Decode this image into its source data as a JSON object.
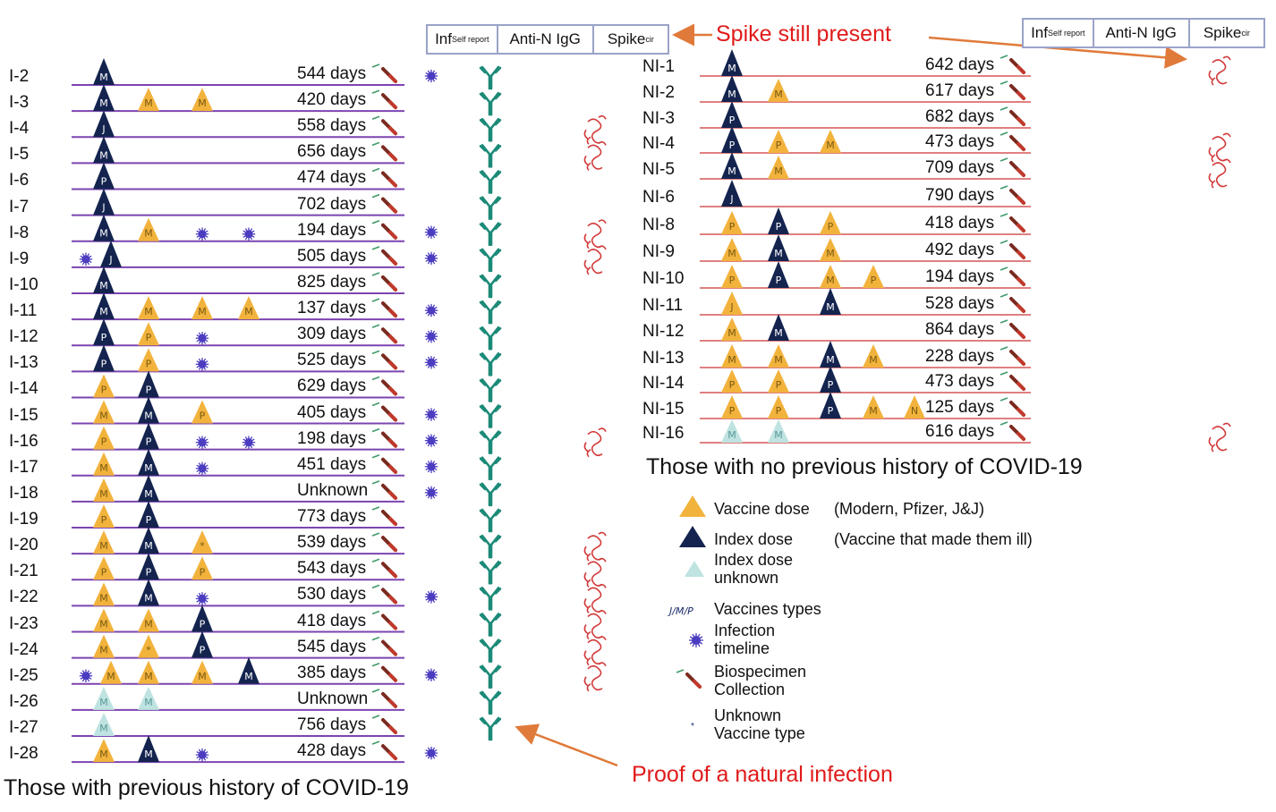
{
  "left": {
    "header": {
      "inf": "Inf",
      "inf_sub": "Self report",
      "antin": "Anti-N IgG",
      "spike": "Spike",
      "spike_sub": "cir"
    },
    "caption": "Those with previous history of COVID-19",
    "rows": [
      {
        "id": "I-2",
        "days": "544 days",
        "doses": [
          {
            "t": "I",
            "l": "M"
          }
        ],
        "inf": true,
        "igg": true,
        "spike": false
      },
      {
        "id": "I-3",
        "days": "420 days",
        "doses": [
          {
            "t": "I",
            "l": "M"
          },
          {
            "t": "V",
            "l": "M"
          },
          {
            "t": "V",
            "l": "M"
          }
        ],
        "inf": false,
        "igg": true,
        "spike": false
      },
      {
        "id": "I-4",
        "days": "558 days",
        "doses": [
          {
            "t": "I",
            "l": "J"
          }
        ],
        "inf": false,
        "igg": true,
        "spike": true
      },
      {
        "id": "I-5",
        "days": "656 days",
        "doses": [
          {
            "t": "I",
            "l": "M"
          }
        ],
        "inf": false,
        "igg": true,
        "spike": true
      },
      {
        "id": "I-6",
        "days": "474 days",
        "doses": [
          {
            "t": "I",
            "l": "P"
          }
        ],
        "inf": false,
        "igg": true,
        "spike": false
      },
      {
        "id": "I-7",
        "days": "702 days",
        "doses": [
          {
            "t": "I",
            "l": "J"
          }
        ],
        "inf": false,
        "igg": true,
        "spike": false
      },
      {
        "id": "I-8",
        "days": "194 days",
        "doses": [
          {
            "t": "I",
            "l": "M"
          },
          {
            "t": "V",
            "l": "M"
          },
          {
            "t": "X"
          },
          {
            "t": "X"
          }
        ],
        "inf": true,
        "igg": true,
        "spike": true
      },
      {
        "id": "I-9",
        "days": "505 days",
        "pre": true,
        "doses": [
          {
            "t": "I",
            "l": "J"
          }
        ],
        "inf": true,
        "igg": true,
        "spike": true
      },
      {
        "id": "I-10",
        "days": "825 days",
        "doses": [
          {
            "t": "I",
            "l": "M"
          }
        ],
        "inf": false,
        "igg": true,
        "spike": false
      },
      {
        "id": "I-11",
        "days": "137 days",
        "doses": [
          {
            "t": "I",
            "l": "M"
          },
          {
            "t": "V",
            "l": "M"
          },
          {
            "t": "V",
            "l": "M"
          },
          {
            "t": "V",
            "l": "M"
          }
        ],
        "inf": true,
        "igg": true,
        "spike": false
      },
      {
        "id": "I-12",
        "days": "309 days",
        "doses": [
          {
            "t": "I",
            "l": "P"
          },
          {
            "t": "V",
            "l": "P"
          },
          {
            "t": "X"
          }
        ],
        "inf": true,
        "igg": true,
        "spike": false
      },
      {
        "id": "I-13",
        "days": "525 days",
        "doses": [
          {
            "t": "I",
            "l": "P"
          },
          {
            "t": "V",
            "l": "P"
          },
          {
            "t": "X"
          }
        ],
        "inf": true,
        "igg": true,
        "spike": false
      },
      {
        "id": "I-14",
        "days": "629 days",
        "doses": [
          {
            "t": "V",
            "l": "P"
          },
          {
            "t": "I",
            "l": "P"
          }
        ],
        "inf": false,
        "igg": true,
        "spike": false
      },
      {
        "id": "I-15",
        "days": "405 days",
        "doses": [
          {
            "t": "V",
            "l": "M"
          },
          {
            "t": "I",
            "l": "M"
          },
          {
            "t": "V",
            "l": "P"
          }
        ],
        "inf": true,
        "igg": true,
        "spike": false
      },
      {
        "id": "I-16",
        "days": "198 days",
        "doses": [
          {
            "t": "V",
            "l": "P"
          },
          {
            "t": "I",
            "l": "P"
          },
          {
            "t": "X"
          },
          {
            "t": "X"
          }
        ],
        "inf": true,
        "igg": true,
        "spike": true
      },
      {
        "id": "I-17",
        "days": "451 days",
        "doses": [
          {
            "t": "V",
            "l": "M"
          },
          {
            "t": "I",
            "l": "M"
          },
          {
            "t": "X"
          }
        ],
        "inf": true,
        "igg": true,
        "spike": false
      },
      {
        "id": "I-18",
        "days": "Unknown",
        "doses": [
          {
            "t": "V",
            "l": "M"
          },
          {
            "t": "I",
            "l": "M"
          }
        ],
        "inf": true,
        "igg": true,
        "spike": false
      },
      {
        "id": "I-19",
        "days": "773 days",
        "doses": [
          {
            "t": "V",
            "l": "P"
          },
          {
            "t": "I",
            "l": "P"
          }
        ],
        "inf": false,
        "igg": true,
        "spike": false
      },
      {
        "id": "I-20",
        "days": "539 days",
        "doses": [
          {
            "t": "V",
            "l": "M"
          },
          {
            "t": "I",
            "l": "M"
          },
          {
            "t": "V",
            "l": "*"
          }
        ],
        "inf": false,
        "igg": true,
        "spike": true
      },
      {
        "id": "I-21",
        "days": "543 days",
        "doses": [
          {
            "t": "V",
            "l": "P"
          },
          {
            "t": "I",
            "l": "P"
          },
          {
            "t": "V",
            "l": "P"
          }
        ],
        "inf": false,
        "igg": true,
        "spike": true
      },
      {
        "id": "I-22",
        "days": "530 days",
        "doses": [
          {
            "t": "V",
            "l": "M"
          },
          {
            "t": "I",
            "l": "M"
          },
          {
            "t": "X"
          }
        ],
        "inf": true,
        "igg": true,
        "spike": true
      },
      {
        "id": "I-23",
        "days": "418 days",
        "doses": [
          {
            "t": "V",
            "l": "M"
          },
          {
            "t": "V",
            "l": "M"
          },
          {
            "t": "I",
            "l": "P"
          }
        ],
        "inf": false,
        "igg": true,
        "spike": true
      },
      {
        "id": "I-24",
        "days": "545 days",
        "doses": [
          {
            "t": "V",
            "l": "M"
          },
          {
            "t": "V",
            "l": "*"
          },
          {
            "t": "I",
            "l": "P"
          }
        ],
        "inf": false,
        "igg": true,
        "spike": true
      },
      {
        "id": "I-25",
        "days": "385 days",
        "pre": true,
        "doses": [
          {
            "t": "V",
            "l": "M"
          },
          {
            "t": "V",
            "l": "M"
          },
          {
            "t": "V",
            "l": "M"
          },
          {
            "t": "I",
            "l": "M"
          }
        ],
        "inf": true,
        "igg": true,
        "spike": true
      },
      {
        "id": "I-26",
        "days": "Unknown",
        "doses": [
          {
            "t": "U",
            "l": "M"
          },
          {
            "t": "U",
            "l": "M"
          }
        ],
        "inf": false,
        "igg": true,
        "spike": false
      },
      {
        "id": "I-27",
        "days": "756 days",
        "doses": [
          {
            "t": "U",
            "l": "M"
          }
        ],
        "inf": false,
        "igg": true,
        "spike": false
      },
      {
        "id": "I-28",
        "days": "428 days",
        "doses": [
          {
            "t": "V",
            "l": "M"
          },
          {
            "t": "I",
            "l": "M"
          },
          {
            "t": "X"
          }
        ],
        "inf": true,
        "igg": false,
        "spike": false
      }
    ]
  },
  "right": {
    "header": {
      "inf": "Inf",
      "inf_sub": "Self report",
      "antin": "Anti-N IgG",
      "spike": "Spike",
      "spike_sub": "cir"
    },
    "caption": "Those with  no previous history of COVID-19",
    "rows": [
      {
        "id": "NI-1",
        "days": "642 days",
        "doses": [
          {
            "t": "I",
            "l": "M"
          }
        ],
        "spike": true
      },
      {
        "id": "NI-2",
        "days": "617 days",
        "doses": [
          {
            "t": "I",
            "l": "M"
          },
          {
            "t": "V",
            "l": "M"
          }
        ],
        "spike": false
      },
      {
        "id": "NI-3",
        "days": "682 days",
        "doses": [
          {
            "t": "I",
            "l": "P"
          }
        ],
        "spike": false
      },
      {
        "id": "NI-4",
        "days": "473 days",
        "doses": [
          {
            "t": "I",
            "l": "P"
          },
          {
            "t": "V",
            "l": "P"
          },
          {
            "t": "V",
            "l": "M"
          }
        ],
        "spike": true
      },
      {
        "id": "NI-5",
        "days": "709 days",
        "doses": [
          {
            "t": "I",
            "l": "M"
          },
          {
            "t": "V",
            "l": "M"
          }
        ],
        "spike": true
      },
      {
        "id": "NI-6",
        "days": "790 days",
        "doses": [
          {
            "t": "I",
            "l": "J"
          }
        ],
        "spike": false
      },
      {
        "id": "NI-8",
        "days": "418 days",
        "doses": [
          {
            "t": "V",
            "l": "P"
          },
          {
            "t": "I",
            "l": "P"
          },
          {
            "t": "V",
            "l": "P"
          }
        ],
        "spike": false
      },
      {
        "id": "NI-9",
        "days": "492 days",
        "doses": [
          {
            "t": "V",
            "l": "M"
          },
          {
            "t": "I",
            "l": "M"
          },
          {
            "t": "V",
            "l": "M"
          }
        ],
        "spike": false
      },
      {
        "id": "NI-10",
        "days": "194 days",
        "doses": [
          {
            "t": "V",
            "l": "P"
          },
          {
            "t": "I",
            "l": "P"
          },
          {
            "t": "V",
            "l": "M"
          },
          {
            "t": "V",
            "l": "P"
          }
        ],
        "spike": false
      },
      {
        "id": "NI-11",
        "days": "528 days",
        "doses": [
          {
            "t": "V",
            "l": "J"
          },
          {
            "t": "G"
          },
          {
            "t": "I",
            "l": "M"
          }
        ],
        "spike": false
      },
      {
        "id": "NI-12",
        "days": "864 days",
        "doses": [
          {
            "t": "V",
            "l": "M"
          },
          {
            "t": "I",
            "l": "M"
          }
        ],
        "spike": false
      },
      {
        "id": "NI-13",
        "days": "228 days",
        "doses": [
          {
            "t": "V",
            "l": "M"
          },
          {
            "t": "V",
            "l": "M"
          },
          {
            "t": "I",
            "l": "M"
          },
          {
            "t": "V",
            "l": "M"
          }
        ],
        "spike": false
      },
      {
        "id": "NI-14",
        "days": "473 days",
        "doses": [
          {
            "t": "V",
            "l": "P"
          },
          {
            "t": "V",
            "l": "P"
          },
          {
            "t": "I",
            "l": "P"
          }
        ],
        "spike": false
      },
      {
        "id": "NI-15",
        "days": "125 days",
        "doses": [
          {
            "t": "V",
            "l": "P"
          },
          {
            "t": "V",
            "l": "P"
          },
          {
            "t": "I",
            "l": "P"
          },
          {
            "t": "V",
            "l": "M"
          },
          {
            "t": "V",
            "l": "N"
          }
        ],
        "spike": false
      },
      {
        "id": "NI-16",
        "days": "616 days",
        "doses": [
          {
            "t": "U",
            "l": "M"
          },
          {
            "t": "U",
            "l": "M"
          }
        ],
        "spike": true
      }
    ]
  },
  "annotations": {
    "spike_still_present": "Spike still present",
    "natural_infection": "Proof of a natural infection"
  },
  "legend": [
    {
      "icon": "vaccine-dose",
      "label": "Vaccine dose",
      "note": "(Modern, Pfizer, J&J)"
    },
    {
      "icon": "index-dose",
      "label": "Index dose",
      "note": "(Vaccine that made them ill)"
    },
    {
      "icon": "index-dose-unknown",
      "label": "Index dose\nunknown"
    },
    {
      "icon": "vaccine-types",
      "symbol": "J/M/P",
      "label": "Vaccines types"
    },
    {
      "icon": "infection",
      "label": "Infection\ntimeline"
    },
    {
      "icon": "biospecimen",
      "label": "Biospecimen\nCollection"
    },
    {
      "icon": "unknown-vaccine",
      "label": "Unknown\nVaccine type"
    }
  ],
  "colors": {
    "vaccine": "#f2b33d",
    "index": "#14244f",
    "unknown": "#bfe3e0",
    "left_line": "#7b44b0",
    "right_line": "#e08080",
    "igg": "#1c8a78",
    "infection": "#4b3cc0",
    "spike": "#d23a3a",
    "red_text": "#e01b1b",
    "arrow": "#e07a3a"
  }
}
